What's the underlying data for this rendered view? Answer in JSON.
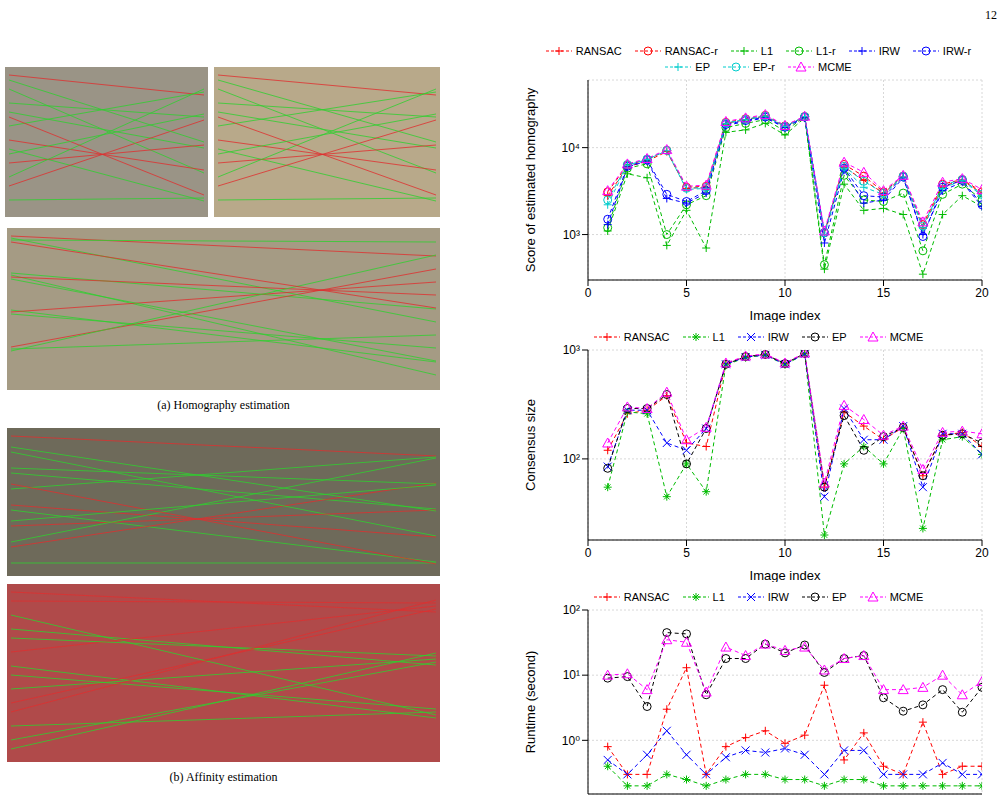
{
  "page_number": "12",
  "figures": [
    {
      "caption": "(a) Homography estimation"
    },
    {
      "caption": "(b) Affinity estimation"
    }
  ],
  "chart_data": [
    {
      "type": "line",
      "xlabel": "Image index",
      "ylabel": "Score of estimated homography",
      "x": [
        1,
        2,
        3,
        4,
        5,
        6,
        7,
        8,
        9,
        10,
        11,
        12,
        13,
        14,
        15,
        16,
        17,
        18,
        19,
        20
      ],
      "xlim": [
        0,
        20
      ],
      "xticks": [
        0,
        5,
        10,
        15,
        20
      ],
      "ylim": [
        300,
        60000
      ],
      "yticks": [
        {
          "value": 1000,
          "label": "10³"
        },
        {
          "value": 10000,
          "label": "10⁴"
        }
      ],
      "log": "y",
      "grid": true,
      "legend": "top",
      "series": [
        {
          "name": "RANSAC",
          "color": "#ff0000",
          "marker": "plus",
          "line_style": "dashed",
          "values": [
            2800,
            6000,
            7000,
            9000,
            3400,
            3500,
            19000,
            21000,
            23000,
            17500,
            22500,
            1000,
            6000,
            4200,
            3000,
            4600,
            1200,
            3600,
            4200,
            3000
          ]
        },
        {
          "name": "RANSAC-r",
          "color": "#ff0000",
          "marker": "circle",
          "line_style": "dashed",
          "values": [
            3100,
            6300,
            7300,
            9300,
            3500,
            3600,
            19500,
            21500,
            23500,
            17800,
            22800,
            1050,
            6400,
            4700,
            3100,
            4700,
            1300,
            3800,
            4300,
            3100
          ]
        },
        {
          "name": "L1",
          "color": "#00bb00",
          "marker": "plus",
          "line_style": "dashed",
          "values": [
            1100,
            5000,
            4500,
            750,
            1900,
            700,
            15000,
            16000,
            19000,
            14000,
            22000,
            400,
            3800,
            1900,
            2000,
            1700,
            350,
            1700,
            2800,
            2100
          ]
        },
        {
          "name": "L1-r",
          "color": "#00bb00",
          "marker": "circle",
          "line_style": "dashed",
          "values": [
            1200,
            5800,
            6500,
            1000,
            2200,
            2800,
            17000,
            19000,
            21000,
            15500,
            22500,
            450,
            4800,
            2500,
            2400,
            3000,
            650,
            2900,
            3800,
            2500
          ]
        },
        {
          "name": "IRW",
          "color": "#0000ff",
          "marker": "plus",
          "line_style": "dashed",
          "values": [
            1300,
            6000,
            7000,
            2600,
            2300,
            3000,
            18000,
            20000,
            22000,
            17000,
            22000,
            800,
            5500,
            2300,
            2500,
            4500,
            1000,
            3200,
            4000,
            2100
          ]
        },
        {
          "name": "IRW-r",
          "color": "#0000ff",
          "marker": "circle",
          "line_style": "dashed",
          "values": [
            1500,
            6100,
            7200,
            2900,
            2400,
            3200,
            18500,
            20500,
            22500,
            17200,
            22500,
            1050,
            5800,
            2800,
            2700,
            4600,
            950,
            3500,
            4200,
            2200
          ]
        },
        {
          "name": "EP",
          "color": "#00cccc",
          "marker": "plus",
          "line_style": "dashed",
          "values": [
            2200,
            6300,
            7300,
            9200,
            3300,
            3400,
            19000,
            21000,
            23000,
            17500,
            22800,
            1000,
            5800,
            3500,
            2900,
            4600,
            1200,
            3400,
            4200,
            2800
          ]
        },
        {
          "name": "EP-r",
          "color": "#00cccc",
          "marker": "circle",
          "line_style": "dashed",
          "values": [
            2500,
            6400,
            7400,
            9300,
            3400,
            3500,
            19200,
            21200,
            23200,
            17600,
            22800,
            1050,
            6100,
            4100,
            3000,
            4700,
            1250,
            3700,
            4300,
            2900
          ]
        },
        {
          "name": "MCME",
          "color": "#ff00ff",
          "marker": "triangle",
          "line_style": "dashed",
          "values": [
            3200,
            6500,
            7500,
            9500,
            3600,
            3700,
            20000,
            22000,
            24000,
            18000,
            23000,
            1100,
            6800,
            5200,
            3200,
            4800,
            1400,
            4000,
            4400,
            3300
          ]
        }
      ]
    },
    {
      "type": "line",
      "xlabel": "Image index",
      "ylabel": "Consensus size",
      "x": [
        1,
        2,
        3,
        4,
        5,
        6,
        7,
        8,
        9,
        10,
        11,
        12,
        13,
        14,
        15,
        16,
        17,
        18,
        19,
        20
      ],
      "xlim": [
        0,
        20
      ],
      "xticks": [
        0,
        5,
        10,
        15,
        20
      ],
      "ylim": [
        18,
        1000
      ],
      "yticks": [
        {
          "value": 100,
          "label": "10²"
        },
        {
          "value": 1000,
          "label": "10³"
        }
      ],
      "log": "y",
      "grid": true,
      "legend": "top",
      "series": [
        {
          "name": "RANSAC",
          "color": "#ff0000",
          "marker": "plus",
          "line_style": "dashed",
          "values": [
            120,
            260,
            280,
            380,
            140,
            130,
            750,
            870,
            910,
            750,
            930,
            55,
            270,
            200,
            150,
            195,
            70,
            165,
            175,
            130
          ]
        },
        {
          "name": "L1",
          "color": "#00bb00",
          "marker": "star",
          "line_style": "dashed",
          "values": [
            55,
            270,
            260,
            45,
            90,
            50,
            730,
            850,
            900,
            730,
            920,
            20,
            90,
            130,
            90,
            190,
            23,
            150,
            160,
            110
          ]
        },
        {
          "name": "IRW",
          "color": "#0000ff",
          "marker": "x",
          "line_style": "dashed",
          "values": [
            85,
            280,
            280,
            140,
            120,
            190,
            740,
            860,
            900,
            740,
            920,
            45,
            290,
            150,
            150,
            200,
            55,
            170,
            170,
            110
          ]
        },
        {
          "name": "EP",
          "color": "#000000",
          "marker": "circle",
          "line_style": "dashed",
          "values": [
            82,
            290,
            290,
            390,
            90,
            190,
            740,
            870,
            910,
            750,
            930,
            55,
            250,
            120,
            160,
            195,
            70,
            165,
            170,
            140
          ]
        },
        {
          "name": "MCME",
          "color": "#ff00ff",
          "marker": "triangle",
          "line_style": "dashed",
          "values": [
            140,
            300,
            290,
            410,
            150,
            195,
            760,
            880,
            920,
            760,
            940,
            60,
            310,
            230,
            165,
            200,
            80,
            175,
            180,
            170
          ]
        }
      ]
    },
    {
      "type": "line",
      "ylabel": "Runtime (second)",
      "x": [
        1,
        2,
        3,
        4,
        5,
        6,
        7,
        8,
        9,
        10,
        11,
        12,
        13,
        14,
        15,
        16,
        17,
        18,
        19,
        20
      ],
      "xlim": [
        0,
        20
      ],
      "xticks": [
        0,
        5,
        10,
        15,
        20
      ],
      "ylim": [
        0.15,
        100
      ],
      "yticks": [
        {
          "value": 1,
          "label": "10⁰"
        },
        {
          "value": 10,
          "label": "10¹"
        },
        {
          "value": 100,
          "label": "10²"
        }
      ],
      "log": "y",
      "grid": true,
      "legend": "top",
      "tick_labels": "y",
      "series": [
        {
          "name": "RANSAC",
          "color": "#ff0000",
          "marker": "plus",
          "line_style": "dashed",
          "values": [
            0.8,
            0.3,
            0.3,
            3,
            13,
            0.3,
            0.8,
            1.1,
            1.4,
            0.9,
            1.2,
            7,
            0.5,
            1.3,
            0.4,
            0.3,
            1.9,
            0.3,
            0.4,
            0.4
          ]
        },
        {
          "name": "L1",
          "color": "#00bb00",
          "marker": "star",
          "line_style": "dashed",
          "values": [
            0.4,
            0.2,
            0.2,
            0.3,
            0.25,
            0.2,
            0.25,
            0.3,
            0.3,
            0.25,
            0.25,
            0.2,
            0.25,
            0.25,
            0.2,
            0.2,
            0.2,
            0.2,
            0.2,
            0.2
          ]
        },
        {
          "name": "IRW",
          "color": "#0000ff",
          "marker": "x",
          "line_style": "dashed",
          "values": [
            0.5,
            0.3,
            0.6,
            1.4,
            0.6,
            0.3,
            0.55,
            0.7,
            0.65,
            0.75,
            0.6,
            0.3,
            0.7,
            0.7,
            0.3,
            0.3,
            0.3,
            0.45,
            0.3,
            0.3
          ]
        },
        {
          "name": "EP",
          "color": "#000000",
          "marker": "circle",
          "line_style": "dashed",
          "values": [
            9,
            9.5,
            3.3,
            45,
            43,
            5,
            18,
            18,
            30,
            22,
            29,
            11,
            18,
            20,
            4.5,
            2.8,
            3.5,
            6,
            2.7,
            6.5
          ]
        },
        {
          "name": "MCME",
          "color": "#ff00ff",
          "marker": "triangle",
          "line_style": "dashed",
          "values": [
            10,
            10.5,
            6,
            35,
            32,
            5.5,
            27,
            20,
            30,
            24,
            27,
            12,
            18,
            20,
            6,
            6,
            6.5,
            10,
            5,
            8
          ]
        }
      ]
    }
  ]
}
